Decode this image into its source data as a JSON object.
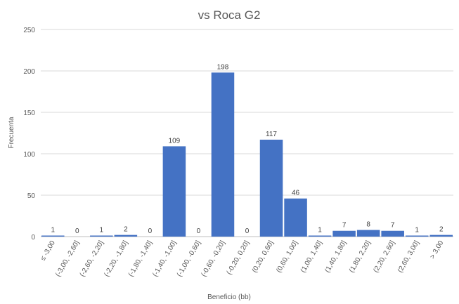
{
  "chart_data": {
    "type": "bar",
    "title": "vs Roca G2",
    "xlabel": "Beneficio (bb)",
    "ylabel": "Frecuenta",
    "ylim": [
      0,
      250
    ],
    "yticks": [
      0,
      50,
      100,
      150,
      200,
      250
    ],
    "grid": true,
    "bar_color": "#4472c4",
    "categories": [
      "≤ -3,00",
      "(-3,00, -2,60]",
      "(-2,60, -2,20]",
      "(-2,20, -1,80]",
      "(-1,80, -1,40]",
      "(-1,40, -1,00]",
      "(-1,00, -0,60]",
      "(-0,60, -0,20]",
      "(-0,20, 0,20]",
      "(0,20, 0,60]",
      "(0,60, 1,00]",
      "(1,00, 1,40]",
      "(1,40, 1,80]",
      "(1,80, 2,20]",
      "(2,20, 2,60]",
      "(2,60, 3,00]",
      "> 3,00"
    ],
    "values": [
      1,
      0,
      1,
      2,
      0,
      109,
      0,
      198,
      0,
      117,
      46,
      1,
      7,
      8,
      7,
      1,
      2
    ]
  }
}
